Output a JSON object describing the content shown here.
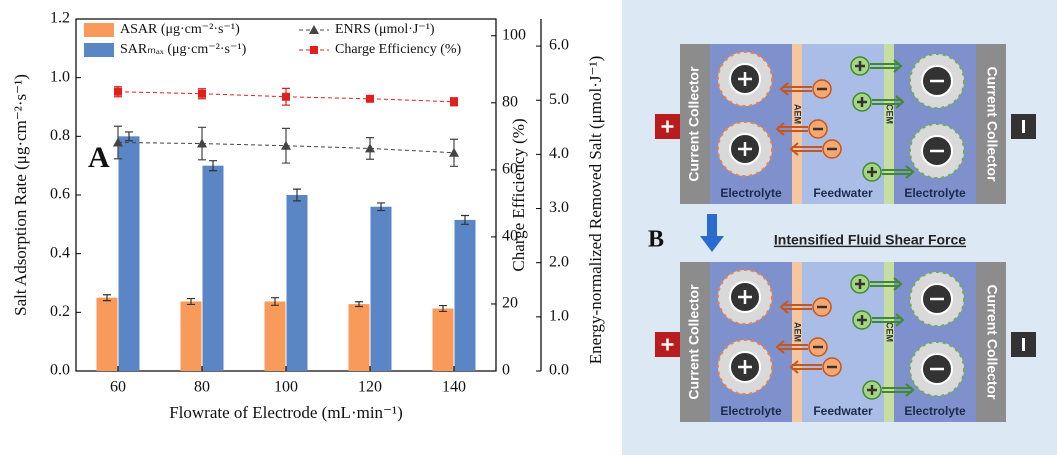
{
  "chart_data": {
    "type": "bar",
    "panel_label": "A",
    "x_label": "Flowrate of Electrode (mL·min⁻¹)",
    "y_label": "Salt Adsorption Rate (μg·cm⁻²·s⁻¹)",
    "y2_label": "Charge Efficiency (%)",
    "y3_label": "Energy-normalized Removed Salt (μmol·J⁻¹)",
    "categories": [
      "60",
      "80",
      "100",
      "120",
      "140"
    ],
    "ylim": [
      0,
      1.2
    ],
    "yticks": [
      {
        "value": 0,
        "label": "0.0"
      },
      0.2,
      0.4,
      0.6,
      0.8,
      {
        "value": 1,
        "label": "1.0"
      },
      1.2
    ],
    "y2lim": [
      0,
      105
    ],
    "y2ticks": [
      0,
      20,
      40,
      60,
      80,
      100
    ],
    "y3lim": [
      0,
      6.5
    ],
    "y3ticks": [
      {
        "value": 0,
        "label": "0.0"
      },
      {
        "value": 1,
        "label": "1.0"
      },
      {
        "value": 2,
        "label": "2.0"
      },
      {
        "value": 3,
        "label": "3.0"
      },
      {
        "value": 4,
        "label": "4.0"
      },
      {
        "value": 5,
        "label": "5.0"
      },
      {
        "value": 6,
        "label": "6.0"
      }
    ],
    "series": [
      {
        "name": "ASAR (μg·cm⁻²·s⁻¹)",
        "type": "bar",
        "color": "#f79a5a",
        "values": [
          0.25,
          0.237,
          0.237,
          0.228,
          0.213
        ],
        "errors": [
          0.01,
          0.01,
          0.013,
          0.008,
          0.01
        ]
      },
      {
        "name": "SARₘₐₓ (μg·cm⁻²·s⁻¹)",
        "type": "bar",
        "color": "#5b86c5",
        "values": [
          0.8,
          0.7,
          0.6,
          0.56,
          0.515
        ],
        "errors": [
          0.015,
          0.017,
          0.02,
          0.013,
          0.015
        ]
      },
      {
        "name": "ENRS (μmol·J⁻¹)",
        "type": "line",
        "axis": "y3",
        "marker": "triangle",
        "color": "#444444",
        "values": [
          4.22,
          4.2,
          4.16,
          4.11,
          4.03
        ],
        "errors": [
          0.3,
          0.3,
          0.32,
          0.2,
          0.25
        ]
      },
      {
        "name": "Charge Efficiency (%)",
        "type": "line",
        "axis": "y2",
        "marker": "square",
        "color": "#e0201c",
        "values": [
          83.3,
          82.7,
          81.8,
          81.2,
          80.3
        ],
        "errors": [
          1.5,
          1.5,
          2.5,
          0.8,
          1.2
        ]
      }
    ]
  },
  "diagram": {
    "panel_label": "B",
    "caption": "Intensified Fluid Shear Force",
    "panels": [
      {
        "left_collector": "Current Collector",
        "right_collector": "Current Collector",
        "left_region": "Electrolyte",
        "middle_region": "Feedwater",
        "right_region": "Electrolyte",
        "aem": "AEM",
        "cem": "CEM"
      },
      {
        "left_collector": "Current Collector",
        "right_collector": "Current Collector",
        "left_region": "Electrolyte",
        "middle_region": "Feedwater",
        "right_region": "Electrolyte",
        "aem": "AEM",
        "cem": "CEM"
      }
    ]
  }
}
